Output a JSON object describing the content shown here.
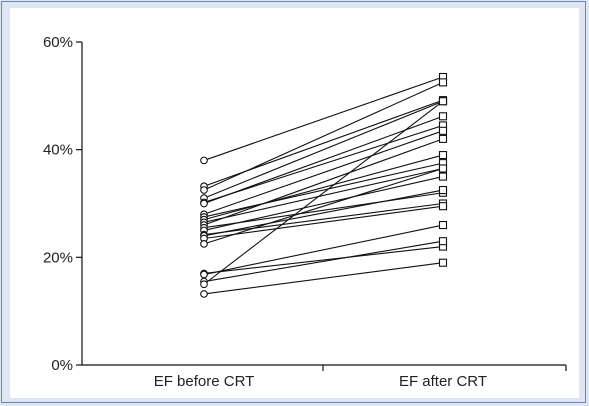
{
  "chart_data": {
    "type": "line",
    "categories": [
      "EF before CRT",
      "EF after CRT"
    ],
    "y_ticks": [
      "0%",
      "20%",
      "40%",
      "60%"
    ],
    "ylim": [
      0,
      60
    ],
    "grid": false,
    "marker_before": "circle",
    "marker_after": "square",
    "colors": {
      "line": "#111111",
      "background": "#dfe6f3",
      "border": "#6f87b8"
    },
    "pairs": [
      [
        38,
        53.5
      ],
      [
        33.2,
        49.2
      ],
      [
        32.5,
        52.5
      ],
      [
        31,
        49
      ],
      [
        30.2,
        44.5
      ],
      [
        30,
        46.2
      ],
      [
        28,
        43.5
      ],
      [
        27.5,
        37.5
      ],
      [
        27,
        39
      ],
      [
        26.5,
        36.5
      ],
      [
        26,
        42
      ],
      [
        25.5,
        32
      ],
      [
        25,
        35
      ],
      [
        24.2,
        30
      ],
      [
        24,
        32.5
      ],
      [
        23.5,
        29.5
      ],
      [
        22.5,
        36.5
      ],
      [
        17,
        22
      ],
      [
        16.8,
        26
      ],
      [
        15.5,
        23
      ],
      [
        15,
        49
      ],
      [
        13.2,
        19
      ]
    ]
  }
}
